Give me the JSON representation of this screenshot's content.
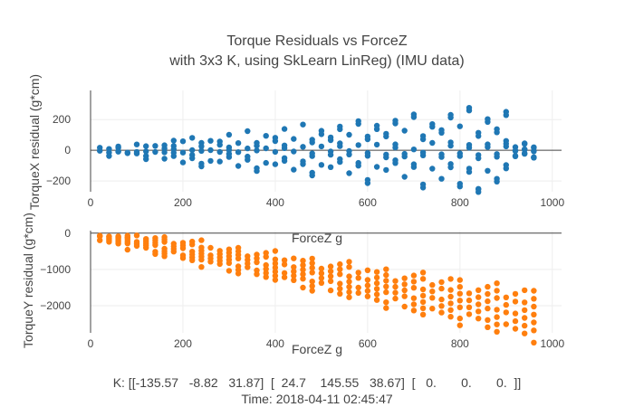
{
  "chart_data": [
    {
      "type": "scatter",
      "title_line1": "Torque Residuals vs ForceZ",
      "title_line2": "with 3x3 K, using SkLearn LinReg) (IMU data)",
      "xlabel": "ForceZ g",
      "ylabel": "TorqueX residual (g*cm)",
      "xlim": [
        0,
        1020
      ],
      "ylim": [
        -270,
        390
      ],
      "xticks": [
        0,
        200,
        400,
        600,
        800,
        1000
      ],
      "xtick_labels": [
        "0",
        "200",
        "400",
        "600",
        "800",
        "1000"
      ],
      "yticks": [
        -200,
        0,
        200
      ],
      "ytick_labels": [
        "−200",
        "0",
        "200"
      ],
      "color": "#1f77b4",
      "series": [
        {
          "name": "TorqueX residual",
          "x": [],
          "y": []
        }
      ]
    },
    {
      "type": "scatter",
      "xlabel": "ForceZ g",
      "ylabel": "TorqueY residual (g*cm)",
      "xlim": [
        0,
        1020
      ],
      "ylim": [
        -2750,
        70
      ],
      "xticks": [
        0,
        200,
        400,
        600,
        800,
        1000
      ],
      "xtick_labels": [
        "0",
        "200",
        "400",
        "600",
        "800",
        "1000"
      ],
      "yticks": [
        -2000,
        -1000,
        0
      ],
      "ytick_labels": [
        "−2000",
        "−1000",
        "0"
      ],
      "color": "#ff7f0e",
      "series": [
        {
          "name": "TorqueY residual",
          "x": [],
          "y": []
        }
      ]
    }
  ],
  "footer": {
    "k_line": "K: [[-135.57   -8.82   31.87]  [  24.7    145.55   38.67]  [   0.       0.       0.  ]]",
    "time_line": "Time: 2018-04-11 02:45:47"
  }
}
